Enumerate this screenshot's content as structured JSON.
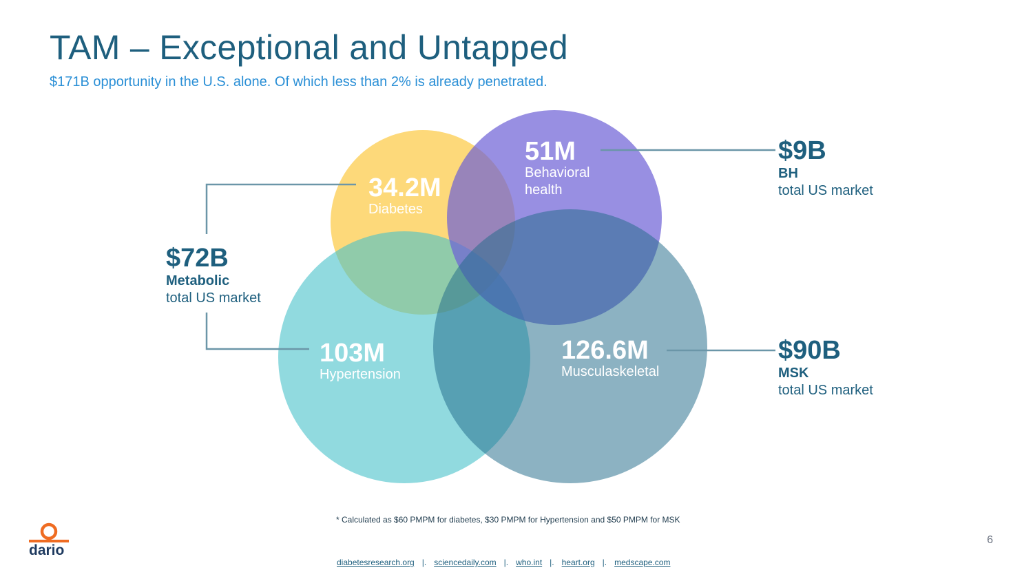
{
  "header": {
    "title": "TAM – Exceptional and Untapped",
    "subtitle": "$171B opportunity in the U.S. alone. Of which less than 2% is already penetrated."
  },
  "circles": {
    "diabetes": {
      "value": "34.2M",
      "label": "Diabetes",
      "color": "#fcca46"
    },
    "behavioral": {
      "value": "51M",
      "label_line1": "Behavioral",
      "label_line2": "health",
      "color": "#6c5fd6"
    },
    "hypertension": {
      "value": "103M",
      "label": "Hypertension",
      "color": "#48c2c9"
    },
    "msk": {
      "value": "126.6M",
      "label": "Musculaskeletal",
      "color": "#236c8a"
    }
  },
  "markets": {
    "metabolic": {
      "value": "$72B",
      "segment": "Metabolic",
      "sub": "total US market"
    },
    "bh": {
      "value": "$9B",
      "segment": "BH",
      "sub": "total US market"
    },
    "msk": {
      "value": "$90B",
      "segment": "MSK",
      "sub": "total US market"
    }
  },
  "colors": {
    "accent": "#1e5f7e",
    "connector": "#6b96a8",
    "brand_orange": "#ef6c22"
  },
  "footnote": "* Calculated as $60 PMPM for diabetes, $30 PMPM for Hypertension and $50 PMPM for MSK",
  "page_number": "6",
  "logo": {
    "text": "dario",
    "icon": "dario-logo-icon"
  },
  "sources": {
    "items": [
      "diabetesresearch.org",
      "sciencedaily.com",
      "who.int",
      "heart.org",
      "medscape.com"
    ],
    "separator": "|."
  }
}
